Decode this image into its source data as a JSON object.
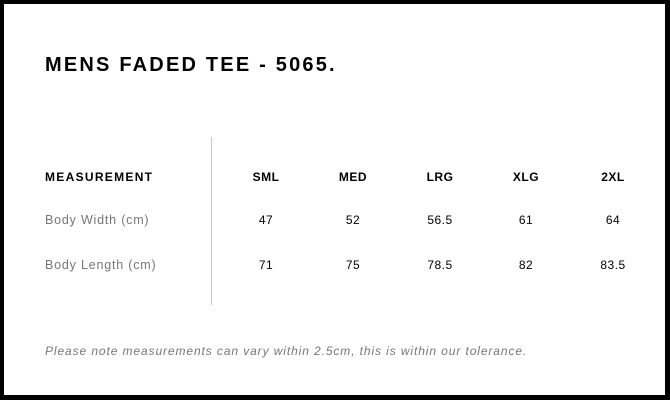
{
  "title": "MENS FADED TEE - 5065.",
  "table": {
    "header": [
      "MEASUREMENT",
      "SML",
      "MED",
      "LRG",
      "XLG",
      "2XL"
    ],
    "rows": [
      {
        "label": "Body Width (cm)",
        "values": [
          "47",
          "52",
          "56.5",
          "61",
          "64"
        ]
      },
      {
        "label": "Body Length (cm)",
        "values": [
          "71",
          "75",
          "78.5",
          "82",
          "83.5"
        ]
      }
    ]
  },
  "note": "Please note measurements can vary within 2.5cm, this is within our tolerance."
}
